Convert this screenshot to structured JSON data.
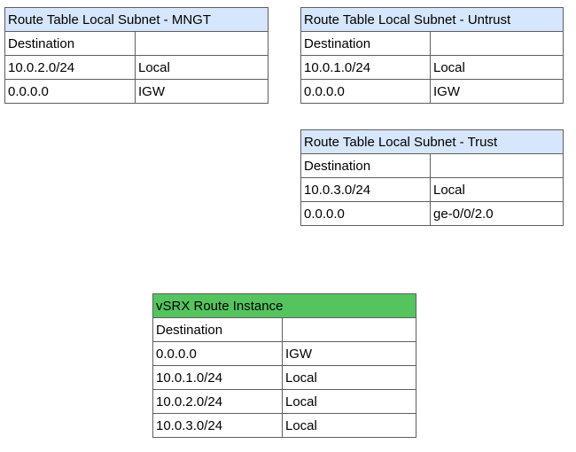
{
  "tables": {
    "mngt": {
      "title": "Route Table Local Subnet  - MNGT",
      "header": [
        "Destination",
        ""
      ],
      "rows": [
        [
          "10.0.2.0/24",
          "Local"
        ],
        [
          "0.0.0.0",
          "IGW"
        ]
      ]
    },
    "untrust": {
      "title": "Route Table Local Subnet  - Untrust",
      "header": [
        "Destination",
        ""
      ],
      "rows": [
        [
          "10.0.1.0/24",
          "Local"
        ],
        [
          "0.0.0.0",
          "IGW"
        ]
      ]
    },
    "trust": {
      "title": "Route Table Local Subnet  - Trust",
      "header": [
        "Destination",
        ""
      ],
      "rows": [
        [
          "10.0.3.0/24",
          "Local"
        ],
        [
          "0.0.0.0",
          "ge-0/0/2.0"
        ]
      ]
    },
    "vsrx": {
      "title": "vSRX Route Instance",
      "header": [
        "Destination",
        ""
      ],
      "rows": [
        [
          "0.0.0.0",
          "IGW"
        ],
        [
          "10.0.1.0/24",
          "Local"
        ],
        [
          "10.0.2.0/24",
          "Local"
        ],
        [
          "10.0.3.0/24",
          "Local"
        ]
      ]
    }
  },
  "colors": {
    "subnet_header": "#d6e6fc",
    "instance_header": "#55c45f",
    "border": "#5f5f5f"
  }
}
